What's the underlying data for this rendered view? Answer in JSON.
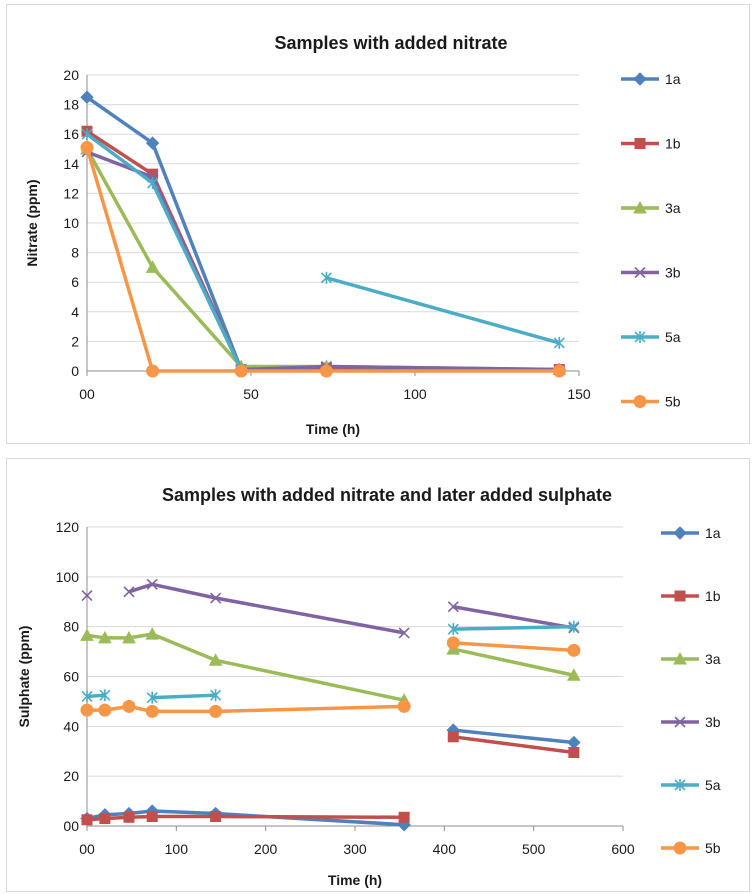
{
  "chart_data": [
    {
      "type": "line",
      "title": "Samples with added nitrate",
      "xlabel": "Time (h)",
      "ylabel": "Nitrate (ppm)",
      "xlim": [
        0,
        150
      ],
      "ylim": [
        0,
        20
      ],
      "xticks": [
        0,
        50,
        100,
        150
      ],
      "xtick_labels": [
        "00",
        "50",
        "100",
        "150"
      ],
      "yticks": [
        0,
        2,
        4,
        6,
        8,
        10,
        12,
        14,
        16,
        18,
        20
      ],
      "grid": "horizontal",
      "legend_position": "right",
      "series": [
        {
          "name": "1a",
          "color": "#4f81bd",
          "marker": "diamond",
          "segments": [
            [
              [
                0,
                18.5
              ],
              [
                20,
                15.4
              ],
              [
                47,
                0.1
              ],
              [
                73,
                0.2
              ],
              [
                144,
                0.1
              ]
            ]
          ]
        },
        {
          "name": "1b",
          "color": "#c0504d",
          "marker": "square",
          "segments": [
            [
              [
                0,
                16.2
              ],
              [
                20,
                13.3
              ],
              [
                47,
                0.1
              ],
              [
                73,
                0.2
              ],
              [
                144,
                0.1
              ]
            ]
          ]
        },
        {
          "name": "3a",
          "color": "#9bbb59",
          "marker": "triangle",
          "segments": [
            [
              [
                0,
                15.0
              ],
              [
                20,
                7.0
              ],
              [
                47,
                0.3
              ],
              [
                73,
                0.3
              ],
              [
                144,
                0.1
              ]
            ]
          ]
        },
        {
          "name": "3b",
          "color": "#8064a2",
          "marker": "x",
          "segments": [
            [
              [
                0,
                14.8
              ],
              [
                20,
                13.1
              ],
              [
                47,
                0.1
              ],
              [
                73,
                0.3
              ],
              [
                144,
                0.1
              ]
            ]
          ]
        },
        {
          "name": "5a",
          "color": "#4bacc6",
          "marker": "star",
          "segments": [
            [
              [
                0,
                16.0
              ],
              [
                20,
                12.7
              ],
              [
                47,
                0.1
              ]
            ],
            [
              [
                73,
                6.3
              ],
              [
                144,
                1.9
              ]
            ]
          ]
        },
        {
          "name": "5b",
          "color": "#f79646",
          "marker": "circle",
          "segments": [
            [
              [
                0,
                15.1
              ],
              [
                20,
                0.0
              ],
              [
                47,
                0.0
              ],
              [
                73,
                0.0
              ],
              [
                144,
                0.0
              ]
            ]
          ]
        }
      ]
    },
    {
      "type": "line",
      "title": "Samples with added nitrate and later added sulphate",
      "xlabel": "Time (h)",
      "ylabel": "Sulphate (ppm)",
      "xlim": [
        0,
        600
      ],
      "ylim": [
        0,
        120
      ],
      "xticks": [
        0,
        100,
        200,
        300,
        400,
        500,
        600
      ],
      "xtick_labels": [
        "00",
        "100",
        "200",
        "300",
        "400",
        "500",
        "600"
      ],
      "yticks": [
        0,
        20,
        40,
        60,
        80,
        100,
        120
      ],
      "ytick_labels": [
        "00",
        "20",
        "40",
        "60",
        "80",
        "100",
        "120"
      ],
      "grid": "horizontal",
      "legend_position": "right",
      "series": [
        {
          "name": "1a",
          "color": "#4f81bd",
          "marker": "diamond",
          "segments": [
            [
              [
                0,
                3
              ],
              [
                20,
                4.5
              ],
              [
                47,
                5
              ],
              [
                73,
                6
              ],
              [
                144,
                5
              ],
              [
                355,
                0.5
              ]
            ],
            [
              [
                410,
                38.5
              ],
              [
                545,
                33.5
              ]
            ]
          ]
        },
        {
          "name": "1b",
          "color": "#c0504d",
          "marker": "square",
          "segments": [
            [
              [
                0,
                2.5
              ],
              [
                20,
                3
              ],
              [
                47,
                3.5
              ],
              [
                73,
                3.8
              ],
              [
                144,
                3.8
              ],
              [
                355,
                3.5
              ]
            ],
            [
              [
                410,
                35.8
              ],
              [
                545,
                29.5
              ]
            ]
          ]
        },
        {
          "name": "3a",
          "color": "#9bbb59",
          "marker": "triangle",
          "segments": [
            [
              [
                0,
                76.5
              ],
              [
                20,
                75.5
              ],
              [
                47,
                75.5
              ],
              [
                73,
                77
              ],
              [
                144,
                66.5
              ],
              [
                355,
                50.5
              ]
            ],
            [
              [
                410,
                71
              ],
              [
                545,
                60.5
              ]
            ]
          ]
        },
        {
          "name": "3b",
          "color": "#8064a2",
          "marker": "x",
          "segments": [
            [
              [
                0,
                92.5
              ]
            ],
            [
              [
                47,
                94
              ],
              [
                73,
                97
              ],
              [
                144,
                91.5
              ],
              [
                355,
                77.5
              ]
            ],
            [
              [
                410,
                88
              ],
              [
                545,
                79.5
              ]
            ]
          ]
        },
        {
          "name": "5a",
          "color": "#4bacc6",
          "marker": "star",
          "segments": [
            [
              [
                0,
                52
              ],
              [
                20,
                52.5
              ]
            ],
            [
              [
                73,
                51.5
              ],
              [
                144,
                52.5
              ]
            ],
            [
              [
                410,
                79
              ],
              [
                545,
                80
              ]
            ]
          ]
        },
        {
          "name": "5b",
          "color": "#f79646",
          "marker": "circle",
          "segments": [
            [
              [
                0,
                46.5
              ],
              [
                20,
                46.5
              ],
              [
                47,
                48
              ],
              [
                73,
                46
              ],
              [
                144,
                46
              ],
              [
                355,
                48
              ]
            ],
            [
              [
                410,
                73.5
              ],
              [
                545,
                70.5
              ]
            ]
          ]
        }
      ]
    }
  ]
}
